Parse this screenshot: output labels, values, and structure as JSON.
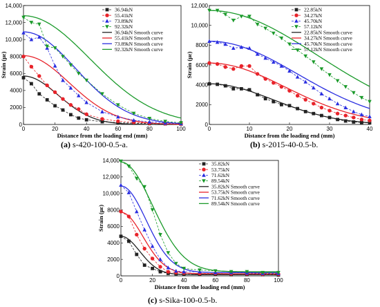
{
  "figure": {
    "panels": [
      {
        "id": "a",
        "caption_letter": "(a)",
        "caption_text": " s-420-100-0.5-a."
      },
      {
        "id": "b",
        "caption_letter": "(b)",
        "caption_text": " s-2015-40-0.5-b."
      },
      {
        "id": "c",
        "caption_letter": "(c)",
        "caption_text": " s-Sika-100-0.5-b."
      }
    ]
  },
  "colors": {
    "black": "#222222",
    "red": "#e8232a",
    "blue": "#2a2ee0",
    "green": "#1a9a2a"
  },
  "chart_data": [
    {
      "id": "a",
      "type": "line",
      "xlabel": "Distance from the loading end (mm)",
      "ylabel": "Strain (με)",
      "xlim": [
        0,
        100
      ],
      "ylim": [
        0,
        14000
      ],
      "xticks": [
        "0",
        "20",
        "40",
        "60",
        "80",
        "100"
      ],
      "yticks": [
        "0",
        "2000",
        "4000",
        "6000",
        "8000",
        "10,000",
        "12,000",
        "14,000"
      ],
      "legend_position": "top-right",
      "legend": [
        "36.94kN",
        "55.41kN",
        "73.89kN",
        "92.32kN",
        "36.94kN Smooth curve",
        "55.41kN Smooth curve",
        "73.89kN Smooth curve",
        "92.32kN Smooth curve"
      ],
      "marker": "square",
      "series": [
        {
          "name": "36.94kN",
          "color": "#222222",
          "x": [
            0,
            5,
            10,
            15,
            20,
            25,
            30,
            35,
            40,
            50,
            60,
            70,
            80,
            90,
            100
          ],
          "y": [
            5500,
            4800,
            3600,
            2900,
            2200,
            1700,
            1150,
            750,
            550,
            320,
            220,
            150,
            100,
            80,
            50
          ]
        },
        {
          "name": "55.41kN",
          "color": "#e8232a",
          "x": [
            0,
            5,
            10,
            15,
            20,
            25,
            30,
            35,
            40,
            50,
            60,
            70,
            80,
            90,
            100
          ],
          "y": [
            8000,
            6800,
            5700,
            4600,
            3800,
            3000,
            2300,
            1800,
            1200,
            650,
            380,
            250,
            150,
            100,
            60
          ]
        },
        {
          "name": "73.89kN",
          "color": "#2a2ee0",
          "x": [
            0,
            5,
            10,
            15,
            20,
            25,
            30,
            35,
            40,
            50,
            60,
            70,
            80,
            90,
            100
          ],
          "y": [
            10800,
            10000,
            10300,
            9000,
            6900,
            5200,
            4300,
            3400,
            2600,
            1500,
            900,
            500,
            300,
            180,
            100
          ]
        },
        {
          "name": "92.32kN",
          "color": "#1a9a2a",
          "x": [
            0,
            5,
            10,
            15,
            20,
            25,
            30,
            35,
            40,
            50,
            60,
            70,
            80,
            90,
            100
          ],
          "y": [
            12600,
            12000,
            11800,
            9200,
            9000,
            8000,
            7000,
            6000,
            5200,
            3600,
            2300,
            1300,
            700,
            350,
            200
          ]
        }
      ],
      "smooth": [
        {
          "name": "36.94kN Smooth curve",
          "A": 5700,
          "c": 0,
          "w": 22
        },
        {
          "name": "55.41kN Smooth curve",
          "A": 8100,
          "c": 0,
          "w": 29
        },
        {
          "name": "73.89kN Smooth curve",
          "A": 10900,
          "c": 0,
          "w": 33
        },
        {
          "name": "92.32kN Smooth curve",
          "A": 12800,
          "c": 0,
          "w": 42
        }
      ]
    },
    {
      "id": "b",
      "type": "line",
      "xlabel": "Distance from the loading end (mm)",
      "ylabel": "Strain (με)",
      "xlim": [
        0,
        40
      ],
      "ylim": [
        0,
        12000
      ],
      "xticks": [
        "0",
        "10",
        "20",
        "30",
        "40"
      ],
      "yticks": [
        "0",
        "2000",
        "4000",
        "6000",
        "8000",
        "10,000",
        "12,000"
      ],
      "legend_position": "top-right",
      "legend": [
        "22.85kN",
        "34.27kN",
        "45.70kN",
        "57.12kN",
        "22.85kN Smooth curve",
        "34.27kN Smooth curve",
        "45.70kN Smooth curve",
        "57.12kN Smooth curve"
      ],
      "marker": "square",
      "series": [
        {
          "name": "22.85kN",
          "color": "#222222",
          "x": [
            0,
            2,
            4,
            6,
            8,
            10,
            12,
            14,
            16,
            18,
            20,
            22,
            24,
            26,
            28,
            30,
            32,
            34,
            36,
            38,
            40
          ],
          "y": [
            4100,
            4050,
            3900,
            3600,
            3600,
            3500,
            3000,
            2600,
            2300,
            2000,
            1900,
            1600,
            1300,
            1100,
            900,
            700,
            500,
            350,
            250,
            200,
            150
          ]
        },
        {
          "name": "34.27kN",
          "color": "#e8232a",
          "x": [
            0,
            2,
            4,
            6,
            8,
            10,
            12,
            14,
            16,
            18,
            20,
            22,
            24,
            26,
            28,
            30,
            32,
            34,
            36,
            38,
            40
          ],
          "y": [
            6200,
            6100,
            5800,
            5600,
            5900,
            5900,
            5100,
            4600,
            4200,
            3800,
            3400,
            2900,
            2500,
            2100,
            1700,
            1400,
            1100,
            900,
            700,
            500,
            400
          ]
        },
        {
          "name": "45.70kN",
          "color": "#2a2ee0",
          "x": [
            0,
            2,
            4,
            6,
            8,
            10,
            12,
            14,
            16,
            18,
            20,
            22,
            24,
            26,
            28,
            30,
            32,
            34,
            36,
            38,
            40
          ],
          "y": [
            8400,
            8300,
            8100,
            7700,
            7800,
            7700,
            7100,
            6700,
            6300,
            5900,
            5400,
            4800,
            4300,
            3700,
            3100,
            2600,
            2100,
            1700,
            1300,
            1000,
            800
          ]
        },
        {
          "name": "57.12kN",
          "color": "#1a9a2a",
          "x": [
            0,
            2,
            4,
            6,
            8,
            10,
            12,
            14,
            16,
            18,
            20,
            22,
            24,
            26,
            28,
            30,
            32,
            34,
            36,
            38,
            40
          ],
          "y": [
            11500,
            11500,
            11100,
            10500,
            10900,
            10900,
            10100,
            9700,
            9200,
            8700,
            8100,
            7500,
            6900,
            6300,
            5600,
            5000,
            4400,
            3800,
            3200,
            2700,
            2300
          ]
        }
      ],
      "smooth": [
        {
          "name": "22.85kN Smooth curve",
          "A": 4100,
          "c": 0,
          "w": 16
        },
        {
          "name": "34.27kN Smooth curve",
          "A": 6200,
          "c": 0,
          "w": 19
        },
        {
          "name": "45.70kN Smooth curve",
          "A": 8400,
          "c": 0,
          "w": 22
        },
        {
          "name": "57.12kN Smooth curve",
          "A": 11500,
          "c": 0,
          "w": 27
        }
      ]
    },
    {
      "id": "c",
      "type": "line",
      "xlabel": "Distance from the loading end (mm)",
      "ylabel": "Strain (με)",
      "xlim": [
        0,
        100
      ],
      "ylim": [
        0,
        14000
      ],
      "xticks": [
        "0",
        "20",
        "40",
        "60",
        "80",
        "100"
      ],
      "yticks": [
        "0",
        "2000",
        "4000",
        "6000",
        "8000",
        "10,000",
        "12,000",
        "14,000"
      ],
      "legend_position": "top-right",
      "legend": [
        "35.82kN",
        "53.75kN",
        "71.62kN",
        "89.54kN",
        "35.82kN Smooth curve",
        "53.75kN Smooth curve",
        "71.62kN Smooth curve",
        "89.54kN Smooth curve"
      ],
      "marker": "square",
      "series": [
        {
          "name": "35.82kN",
          "color": "#222222",
          "x": [
            0,
            5,
            10,
            15,
            20,
            25,
            30,
            35,
            40,
            50,
            60,
            70,
            80,
            90,
            100
          ],
          "y": [
            4800,
            4200,
            2600,
            1300,
            900,
            500,
            300,
            250,
            200,
            200,
            200,
            150,
            150,
            150,
            100
          ]
        },
        {
          "name": "53.75kN",
          "color": "#e8232a",
          "x": [
            0,
            5,
            10,
            15,
            20,
            25,
            30,
            35,
            40,
            50,
            60,
            70,
            80,
            90,
            100
          ],
          "y": [
            7800,
            7200,
            5000,
            3300,
            2100,
            1100,
            500,
            400,
            350,
            300,
            300,
            250,
            250,
            200,
            200
          ]
        },
        {
          "name": "71.62kN",
          "color": "#2a2ee0",
          "x": [
            0,
            5,
            10,
            15,
            20,
            25,
            30,
            35,
            40,
            50,
            60,
            70,
            80,
            90,
            100
          ],
          "y": [
            11000,
            10100,
            7800,
            5600,
            3600,
            2000,
            1000,
            600,
            500,
            500,
            400,
            400,
            350,
            300,
            300
          ]
        },
        {
          "name": "89.54kN",
          "color": "#1a9a2a",
          "x": [
            0,
            5,
            10,
            15,
            20,
            25,
            30,
            35,
            40,
            50,
            60,
            70,
            80,
            90,
            100
          ],
          "y": [
            13900,
            13300,
            11800,
            10800,
            8000,
            5000,
            2800,
            1500,
            900,
            700,
            600,
            500,
            500,
            400,
            400
          ]
        }
      ],
      "smooth": [
        {
          "name": "35.82kN Smooth curve",
          "A": 4800,
          "c": 0,
          "w": 12,
          "base": 150
        },
        {
          "name": "53.75kN Smooth curve",
          "A": 7700,
          "c": 0,
          "w": 14,
          "base": 250
        },
        {
          "name": "71.62kN Smooth curve",
          "A": 10900,
          "c": 0,
          "w": 16,
          "base": 400
        },
        {
          "name": "89.54kN Smooth curve",
          "A": 13800,
          "c": 0,
          "w": 20,
          "base": 500
        }
      ]
    }
  ]
}
